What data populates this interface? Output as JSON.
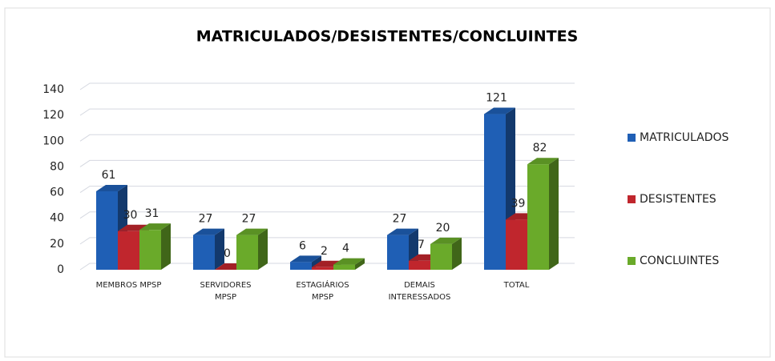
{
  "chart_data": {
    "type": "bar3d",
    "title": "MATRICULADOS/DESISTENTES/CONCLUINTES",
    "categories": [
      "MEMBROS MPSP",
      "SERVIDORES\nMPSP",
      "ESTAGIÁRIOS\nMPSP",
      "DEMAIS\nINTERESSADOS",
      "TOTAL"
    ],
    "series": [
      {
        "name": "MATRICULADOS",
        "color": "#1f5fb5",
        "values": [
          61,
          27,
          6,
          27,
          121
        ]
      },
      {
        "name": "DESISTENTES",
        "color": "#c0262d",
        "values": [
          30,
          0,
          2,
          7,
          39
        ]
      },
      {
        "name": "CONCLUINTES",
        "color": "#6aaa2a",
        "values": [
          31,
          27,
          4,
          20,
          82
        ]
      }
    ],
    "ylim": [
      0,
      140
    ],
    "yticks": [
      0,
      20,
      40,
      60,
      80,
      100,
      120,
      140
    ],
    "grid": true,
    "legend": "right"
  }
}
